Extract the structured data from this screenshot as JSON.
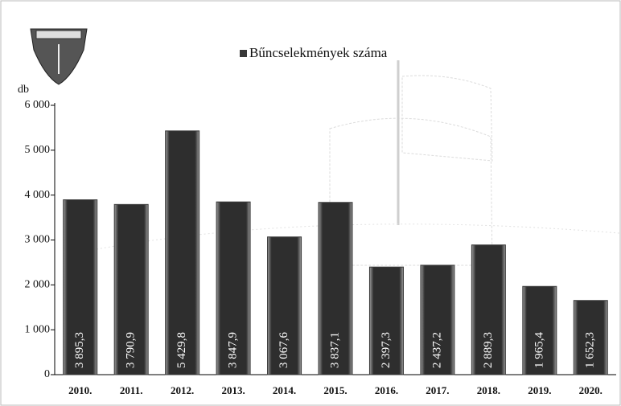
{
  "chart_data": {
    "type": "bar",
    "y_label": "db",
    "categories": [
      "2010.",
      "2011.",
      "2012.",
      "2013.",
      "2014.",
      "2015.",
      "2016.",
      "2017.",
      "2018.",
      "2019.",
      "2020."
    ],
    "series": [
      {
        "name": "Bűncselekmények száma",
        "color": "#383838",
        "values": [
          3895.3,
          3790.9,
          5429.8,
          3847.9,
          3067.6,
          3837.1,
          2397.3,
          2437.2,
          2889.3,
          1965.4,
          1652.3
        ],
        "value_labels": [
          "3 895,3",
          "3 790,9",
          "5 429,8",
          "3 847,9",
          "3 067,6",
          "3 837,1",
          "2 397,3",
          "2 437,2",
          "2 889,3",
          "1 965,4",
          "1 652,3"
        ]
      }
    ],
    "ylim": [
      0,
      6000
    ],
    "yticks": [
      0,
      {
        "value": 1000,
        "label": "1 000"
      },
      {
        "value": 2000,
        "label": "2 000"
      },
      {
        "value": 3000,
        "label": "3 000"
      },
      {
        "value": 4000,
        "label": "4 000"
      },
      {
        "value": 5000,
        "label": "5 000"
      },
      {
        "value": 6000,
        "label": "6 000"
      }
    ]
  }
}
